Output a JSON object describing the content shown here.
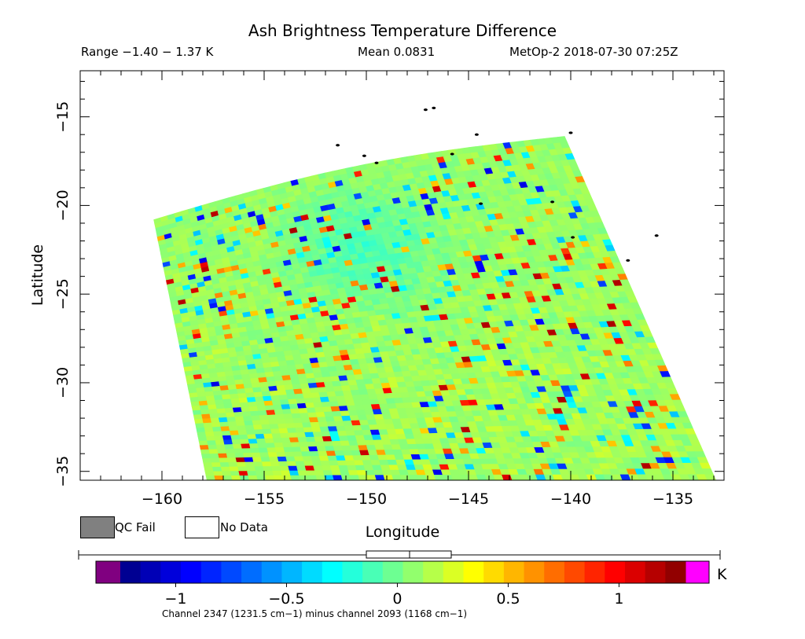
{
  "chart_data": {
    "type": "heatmap",
    "title": "Ash Brightness Temperature Difference",
    "header": {
      "range": "Range −1.40 − 1.37 K",
      "mean": "Mean 0.0831",
      "satellite_time": "MetOp-2 2018-07-30 07:25Z"
    },
    "xlabel": "Longitude",
    "ylabel": "Latitude",
    "xlim": [
      -164,
      -132.5
    ],
    "ylim": [
      -35.5,
      -12.4
    ],
    "x_ticks": [
      -160,
      -155,
      -150,
      -145,
      -140,
      -135
    ],
    "y_ticks": [
      -15,
      -20,
      -25,
      -30,
      -35
    ],
    "x_tick_labels": [
      "−160",
      "−155",
      "−150",
      "−145",
      "−140",
      "−135"
    ],
    "y_tick_labels": [
      "−15",
      "−20",
      "−25",
      "−30",
      "−35"
    ],
    "swath_corners": {
      "top_left": [
        -160.4,
        -20.8
      ],
      "top_right": [
        -140.3,
        -16.1
      ],
      "bottom_right": [
        -132.9,
        -35.5
      ],
      "bottom_left": [
        -157.8,
        -35.5
      ]
    },
    "swath_grid": {
      "rows": 60,
      "cols": 60
    },
    "colorbar": {
      "ticks": [
        -1,
        -0.5,
        0,
        0.5,
        1
      ],
      "tick_labels": [
        "−1",
        "−0.5",
        "0",
        "0.5",
        "1"
      ],
      "min": -1.25,
      "max": 1.3,
      "unit": "K",
      "below_color": "#800080",
      "above_color": "#ff00ff",
      "note": "Channel 2347 (1231.5 cm−1) minus channel 2093 (1168 cm−1)"
    },
    "legend": [
      {
        "label": "QC Fail",
        "color": "#808080"
      },
      {
        "label": "No Data",
        "color": "#ffffff"
      }
    ],
    "island_points": [
      [
        -147.1,
        -14.6
      ],
      [
        -146.7,
        -14.5
      ],
      [
        -151.4,
        -16.6
      ],
      [
        -150.1,
        -17.2
      ],
      [
        -149.5,
        -17.6
      ],
      [
        -145.8,
        -17.1
      ],
      [
        -144.4,
        -19.9
      ],
      [
        -140.0,
        -15.9
      ],
      [
        -140.9,
        -19.8
      ],
      [
        -139.9,
        -21.8
      ],
      [
        -135.8,
        -21.7
      ],
      [
        -137.2,
        -23.1
      ],
      [
        -144.6,
        -16.0
      ]
    ]
  }
}
